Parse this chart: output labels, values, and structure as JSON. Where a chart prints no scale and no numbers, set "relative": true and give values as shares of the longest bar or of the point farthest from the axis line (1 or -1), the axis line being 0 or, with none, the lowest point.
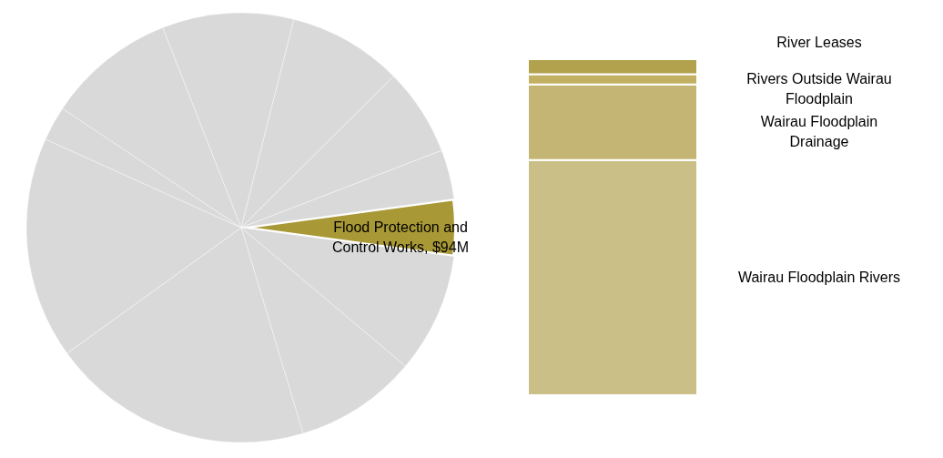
{
  "chart_data": [
    {
      "type": "pie",
      "categories": [
        "Flood Protection and Control Works, $94M",
        null,
        null,
        null,
        null,
        null,
        null,
        null,
        null,
        null,
        null
      ],
      "values": [
        4.3,
        9.0,
        9.2,
        19.7,
        16.7,
        2.6,
        9.7,
        9.9,
        8.6,
        6.6,
        3.7
      ],
      "colors": [
        "#a99936",
        "#d9d9d9",
        "#d9d9d9",
        "#d9d9d9",
        "#d9d9d9",
        "#d9d9d9",
        "#d9d9d9",
        "#d9d9d9",
        "#d9d9d9",
        "#d9d9d9",
        "#d9d9d9"
      ]
    },
    {
      "type": "bar",
      "stacked": true,
      "relative": true,
      "categories": [
        null
      ],
      "series": [
        {
          "name": "Wairau Floodplain Rivers",
          "color": "#cbbf88",
          "values": [
            0.7
          ]
        },
        {
          "name": "Wairau Floodplain Drainage",
          "color": "#c4b574",
          "values": [
            0.225
          ]
        },
        {
          "name": "Rivers Outside Wairau Floodplain",
          "color": "#c2b163",
          "values": [
            0.03
          ]
        },
        {
          "name": "River Leases",
          "color": "#b2a14d",
          "values": [
            0.045
          ]
        }
      ]
    }
  ]
}
